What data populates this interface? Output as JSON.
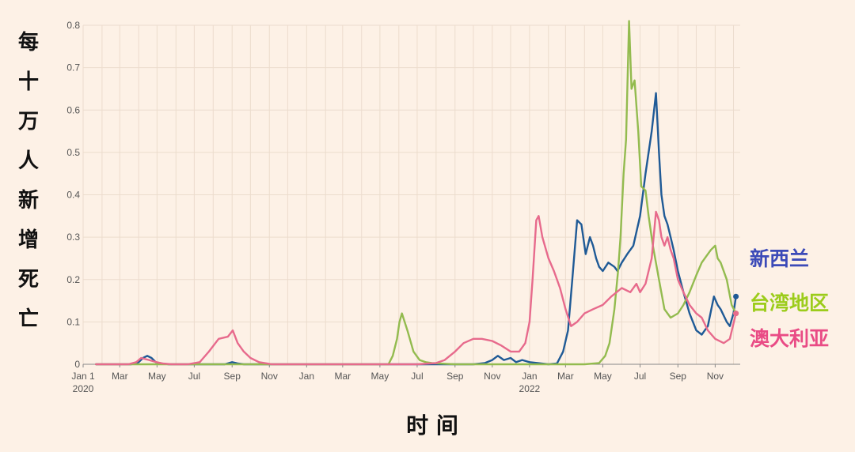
{
  "chart_data": {
    "type": "line",
    "ylabel": "每十万人新增死亡",
    "xlabel": "时 间",
    "ylim": [
      0,
      0.8
    ],
    "y_ticks": [
      "0",
      "0.1",
      "0.2",
      "0.3",
      "0.4",
      "0.5",
      "0.6",
      "0.7",
      "0.8"
    ],
    "x_ticks": [
      {
        "label": "Jan 1",
        "sub": "2020",
        "date": "2020-01-01"
      },
      {
        "label": "Mar",
        "sub": "",
        "date": "2020-03-01"
      },
      {
        "label": "May",
        "sub": "",
        "date": "2020-05-01"
      },
      {
        "label": "Jul",
        "sub": "",
        "date": "2020-07-01"
      },
      {
        "label": "Sep",
        "sub": "",
        "date": "2020-09-01"
      },
      {
        "label": "Nov",
        "sub": "",
        "date": "2020-11-01"
      },
      {
        "label": "Jan",
        "sub": "",
        "date": "2021-01-01"
      },
      {
        "label": "Mar",
        "sub": "",
        "date": "2021-03-01"
      },
      {
        "label": "May",
        "sub": "",
        "date": "2021-05-01"
      },
      {
        "label": "Jul",
        "sub": "",
        "date": "2021-07-01"
      },
      {
        "label": "Sep",
        "sub": "",
        "date": "2021-09-01"
      },
      {
        "label": "Nov",
        "sub": "",
        "date": "2021-11-01"
      },
      {
        "label": "Jan",
        "sub": "2022",
        "date": "2022-01-01"
      },
      {
        "label": "Mar",
        "sub": "",
        "date": "2022-03-01"
      },
      {
        "label": "May",
        "sub": "",
        "date": "2022-05-01"
      },
      {
        "label": "Jul",
        "sub": "",
        "date": "2022-07-01"
      },
      {
        "label": "Sep",
        "sub": "",
        "date": "2022-09-01"
      },
      {
        "label": "Nov",
        "sub": "",
        "date": "2022-11-01"
      }
    ],
    "grid": true,
    "legend_placement": "right-end",
    "series": [
      {
        "name": "新西兰",
        "color": "#1f5a96",
        "label_color": "#3c4ab8",
        "x": [
          "2020-01-22",
          "2020-03-20",
          "2020-04-01",
          "2020-04-08",
          "2020-04-15",
          "2020-04-22",
          "2020-04-29",
          "2020-05-08",
          "2020-05-20",
          "2020-08-20",
          "2020-09-01",
          "2020-09-10",
          "2020-09-20",
          "2021-10-01",
          "2021-10-20",
          "2021-11-01",
          "2021-11-10",
          "2021-11-20",
          "2021-12-01",
          "2021-12-10",
          "2021-12-20",
          "2022-01-01",
          "2022-02-01",
          "2022-02-15",
          "2022-02-25",
          "2022-03-05",
          "2022-03-12",
          "2022-03-20",
          "2022-03-27",
          "2022-04-03",
          "2022-04-10",
          "2022-04-15",
          "2022-04-20",
          "2022-04-25",
          "2022-05-01",
          "2022-05-10",
          "2022-05-20",
          "2022-05-25",
          "2022-06-01",
          "2022-06-10",
          "2022-06-20",
          "2022-07-01",
          "2022-07-10",
          "2022-07-20",
          "2022-07-27",
          "2022-08-01",
          "2022-08-05",
          "2022-08-10",
          "2022-08-15",
          "2022-08-20",
          "2022-08-25",
          "2022-09-01",
          "2022-09-10",
          "2022-09-20",
          "2022-10-01",
          "2022-10-10",
          "2022-10-20",
          "2022-10-30",
          "2022-11-05",
          "2022-11-10",
          "2022-11-20",
          "2022-11-25",
          "2022-12-01",
          "2022-12-05"
        ],
        "y": [
          0,
          0,
          0.005,
          0.015,
          0.02,
          0.015,
          0.005,
          0.002,
          0,
          0,
          0.005,
          0.002,
          0,
          0,
          0.003,
          0.01,
          0.02,
          0.01,
          0.015,
          0.005,
          0.01,
          0.005,
          0,
          0.002,
          0.03,
          0.08,
          0.2,
          0.34,
          0.33,
          0.26,
          0.3,
          0.28,
          0.25,
          0.23,
          0.22,
          0.24,
          0.23,
          0.22,
          0.24,
          0.26,
          0.28,
          0.35,
          0.45,
          0.55,
          0.64,
          0.5,
          0.4,
          0.35,
          0.33,
          0.3,
          0.27,
          0.22,
          0.17,
          0.12,
          0.08,
          0.07,
          0.09,
          0.16,
          0.14,
          0.13,
          0.1,
          0.09,
          0.12,
          0.16
        ]
      },
      {
        "name": "台湾地区",
        "color": "#93bb4f",
        "label_color": "#9ccc1b",
        "x": [
          "2020-01-22",
          "2021-05-15",
          "2021-05-22",
          "2021-05-29",
          "2021-06-02",
          "2021-06-06",
          "2021-06-15",
          "2021-06-25",
          "2021-07-05",
          "2021-07-15",
          "2021-07-25",
          "2021-08-05",
          "2021-09-01",
          "2022-01-01",
          "2022-04-01",
          "2022-04-25",
          "2022-05-05",
          "2022-05-12",
          "2022-05-20",
          "2022-05-26",
          "2022-05-30",
          "2022-06-04",
          "2022-06-08",
          "2022-06-13",
          "2022-06-17",
          "2022-06-22",
          "2022-06-28",
          "2022-07-03",
          "2022-07-10",
          "2022-07-15",
          "2022-07-22",
          "2022-08-01",
          "2022-08-10",
          "2022-08-20",
          "2022-09-01",
          "2022-09-10",
          "2022-09-20",
          "2022-10-01",
          "2022-10-10",
          "2022-10-20",
          "2022-10-25",
          "2022-11-01",
          "2022-11-05",
          "2022-11-10",
          "2022-11-20",
          "2022-11-28",
          "2022-12-05"
        ],
        "y": [
          0,
          0,
          0.02,
          0.06,
          0.1,
          0.12,
          0.08,
          0.03,
          0.01,
          0.005,
          0.003,
          0.002,
          0,
          0,
          0,
          0.003,
          0.02,
          0.05,
          0.13,
          0.22,
          0.3,
          0.45,
          0.53,
          0.81,
          0.65,
          0.67,
          0.55,
          0.42,
          0.41,
          0.35,
          0.28,
          0.2,
          0.13,
          0.11,
          0.12,
          0.14,
          0.17,
          0.21,
          0.24,
          0.26,
          0.27,
          0.28,
          0.25,
          0.24,
          0.2,
          0.14,
          0.12
        ]
      },
      {
        "name": "澳大利亚",
        "color": "#e76a8c",
        "label_color": "#e94b85",
        "x": [
          "2020-01-22",
          "2020-03-15",
          "2020-03-28",
          "2020-04-05",
          "2020-04-18",
          "2020-04-30",
          "2020-05-10",
          "2020-05-25",
          "2020-06-20",
          "2020-07-10",
          "2020-07-25",
          "2020-08-10",
          "2020-08-25",
          "2020-09-02",
          "2020-09-10",
          "2020-09-20",
          "2020-10-01",
          "2020-10-15",
          "2020-10-28",
          "2020-11-05",
          "2021-07-01",
          "2021-08-01",
          "2021-08-15",
          "2021-09-01",
          "2021-09-15",
          "2021-10-01",
          "2021-10-15",
          "2021-11-01",
          "2021-11-15",
          "2021-12-01",
          "2021-12-15",
          "2021-12-25",
          "2022-01-01",
          "2022-01-06",
          "2022-01-12",
          "2022-01-16",
          "2022-01-22",
          "2022-02-01",
          "2022-02-10",
          "2022-02-20",
          "2022-03-01",
          "2022-03-10",
          "2022-03-20",
          "2022-04-01",
          "2022-04-15",
          "2022-05-01",
          "2022-05-15",
          "2022-06-01",
          "2022-06-15",
          "2022-06-25",
          "2022-07-01",
          "2022-07-10",
          "2022-07-20",
          "2022-07-27",
          "2022-08-01",
          "2022-08-05",
          "2022-08-10",
          "2022-08-15",
          "2022-08-20",
          "2022-08-25",
          "2022-09-01",
          "2022-09-10",
          "2022-09-20",
          "2022-10-01",
          "2022-10-10",
          "2022-10-20",
          "2022-11-01",
          "2022-11-15",
          "2022-11-25",
          "2022-12-05"
        ],
        "y": [
          0,
          0,
          0.005,
          0.015,
          0.01,
          0.005,
          0.002,
          0,
          0,
          0.005,
          0.03,
          0.06,
          0.065,
          0.08,
          0.05,
          0.03,
          0.015,
          0.005,
          0.002,
          0,
          0,
          0.003,
          0.01,
          0.03,
          0.05,
          0.06,
          0.06,
          0.055,
          0.045,
          0.03,
          0.03,
          0.05,
          0.1,
          0.2,
          0.34,
          0.35,
          0.3,
          0.25,
          0.22,
          0.18,
          0.13,
          0.09,
          0.1,
          0.12,
          0.13,
          0.14,
          0.16,
          0.18,
          0.17,
          0.19,
          0.17,
          0.19,
          0.25,
          0.36,
          0.34,
          0.3,
          0.28,
          0.3,
          0.27,
          0.25,
          0.2,
          0.17,
          0.14,
          0.12,
          0.11,
          0.08,
          0.06,
          0.05,
          0.06,
          0.12
        ]
      }
    ]
  }
}
